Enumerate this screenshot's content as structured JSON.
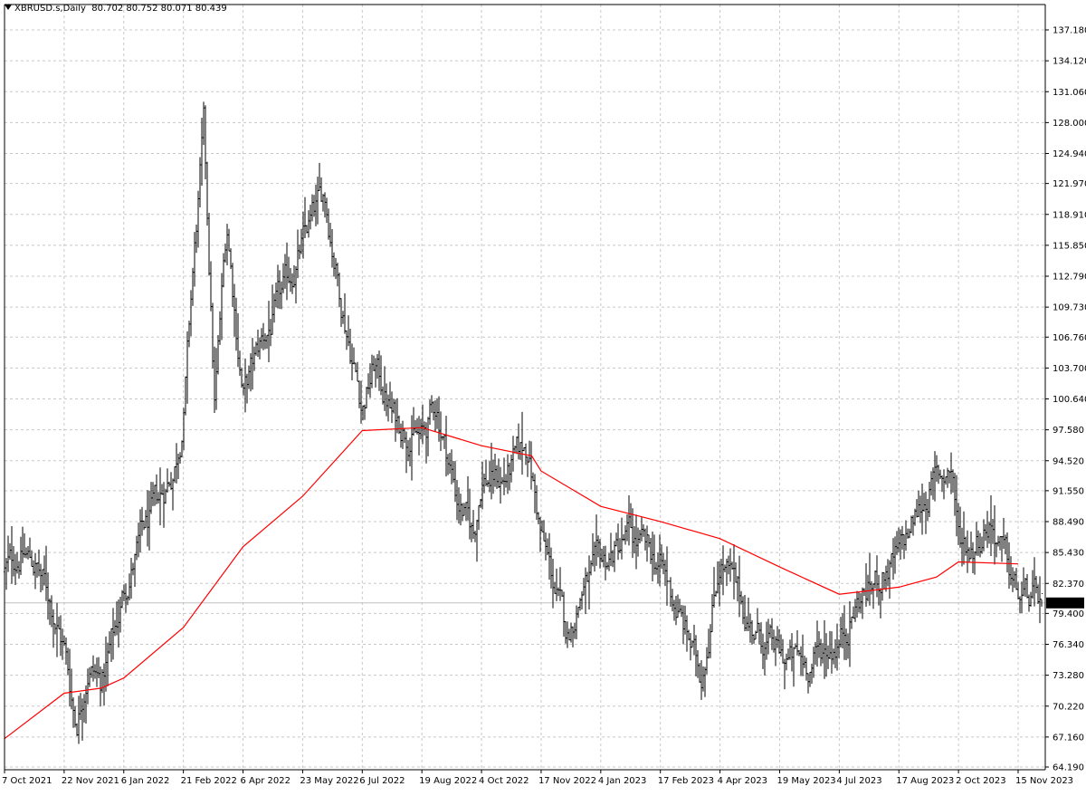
{
  "header": {
    "symbol_label": "XBRUSD.s,Daily",
    "ohlc_text": "80.702 80.752 80.071 80.439"
  },
  "colors": {
    "background": "#ffffff",
    "grid": "#c8c8c8",
    "bars": "#000000",
    "ma_line": "#ff0000",
    "price_line": "#c0c0c0",
    "price_label_bg": "#000000",
    "price_label_text": "#ffffff"
  },
  "chart_data": {
    "type": "bar",
    "subtype": "ohlc",
    "title": "",
    "ylim": [
      64.19,
      137.18
    ],
    "grid": true,
    "current_price": 80.439,
    "y_ticks": [
      "137.180",
      "134.120",
      "131.060",
      "128.000",
      "124.940",
      "121.970",
      "118.910",
      "115.850",
      "112.790",
      "109.730",
      "106.760",
      "103.700",
      "100.640",
      "97.580",
      "94.520",
      "91.550",
      "88.490",
      "85.430",
      "82.370",
      "79.400",
      "76.340",
      "73.280",
      "70.220",
      "67.160",
      "64.190"
    ],
    "x_ticks": [
      "7 Oct 2021",
      "22 Nov 2021",
      "6 Jan 2022",
      "21 Feb 2022",
      "6 Apr 2022",
      "23 May 2022",
      "6 Jul 2022",
      "19 Aug 2022",
      "4 Oct 2022",
      "17 Nov 2022",
      "4 Jan 2023",
      "17 Feb 2023",
      "4 Apr 2023",
      "19 May 2023",
      "4 Jul 2023",
      "17 Aug 2023",
      "2 Oct 2023",
      "15 Nov 2023"
    ],
    "price_path": [
      [
        "7 Oct 2021",
        83.5
      ],
      [
        "2021-10-20",
        85.5
      ],
      [
        "2021-11-01",
        84.0
      ],
      [
        "2021-11-12",
        80.5
      ],
      [
        "22 Nov 2021",
        76.0
      ],
      [
        "2021-12-01",
        68.5
      ],
      [
        "2021-12-10",
        74.5
      ],
      [
        "2021-12-20",
        72.5
      ],
      [
        "2021-12-30",
        77.5
      ],
      [
        "6 Jan 2022",
        81.5
      ],
      [
        "2022-01-20",
        87.0
      ],
      [
        "2022-02-01",
        90.0
      ],
      [
        "2022-02-14",
        94.0
      ],
      [
        "21 Feb 2022",
        99.0
      ],
      [
        "2022-02-28",
        113.0
      ],
      [
        "2022-03-08",
        127.0
      ],
      [
        "2022-03-16",
        100.0
      ],
      [
        "2022-03-25",
        118.0
      ],
      [
        "6 Apr 2022",
        101.0
      ],
      [
        "2022-04-20",
        106.0
      ],
      [
        "2022-05-05",
        110.0
      ],
      [
        "23 May 2022",
        116.0
      ],
      [
        "2022-06-08",
        121.0
      ],
      [
        "2022-06-20",
        111.0
      ],
      [
        "6 Jul 2022",
        100.0
      ],
      [
        "2022-07-15",
        104.0
      ],
      [
        "2022-07-28",
        99.0
      ],
      [
        "19 Aug 2022",
        96.5
      ],
      [
        "2022-08-30",
        100.0
      ],
      [
        "2022-09-15",
        91.0
      ],
      [
        "2022-09-28",
        87.0
      ],
      [
        "4 Oct 2022",
        93.0
      ],
      [
        "2022-10-20",
        92.5
      ],
      [
        "2022-11-07",
        96.0
      ],
      [
        "17 Nov 2022",
        87.0
      ],
      [
        "2022-12-08",
        77.0
      ],
      [
        "2022-12-20",
        82.0
      ],
      [
        "4 Jan 2023",
        84.0
      ],
      [
        "2023-01-25",
        87.0
      ],
      [
        "17 Feb 2023",
        84.0
      ],
      [
        "2023-03-13",
        76.0
      ],
      [
        "2023-03-20",
        73.0
      ],
      [
        "4 Apr 2023",
        85.0
      ],
      [
        "2023-04-28",
        78.0
      ],
      [
        "19 May 2023",
        75.0
      ],
      [
        "2023-06-10",
        74.5
      ],
      [
        "4 Jul 2023",
        77.0
      ],
      [
        "2023-07-20",
        81.0
      ],
      [
        "17 Aug 2023",
        85.0
      ],
      [
        "2023-09-10",
        92.0
      ],
      [
        "2023-09-27",
        94.0
      ],
      [
        "2 Oct 2023",
        87.0
      ],
      [
        "2023-10-12",
        86.0
      ],
      [
        "2023-10-25",
        89.0
      ],
      [
        "15 Nov 2023",
        81.0
      ],
      [
        "2023-11-28",
        80.44
      ]
    ],
    "moving_average": [
      [
        "7 Oct 2021",
        67.0
      ],
      [
        "22 Nov 2021",
        71.5
      ],
      [
        "2021-12-20",
        72.0
      ],
      [
        "6 Jan 2022",
        73.0
      ],
      [
        "21 Feb 2022",
        78.0
      ],
      [
        "6 Apr 2022",
        86.0
      ],
      [
        "23 May 2022",
        91.0
      ],
      [
        "6 Jul 2022",
        97.5
      ],
      [
        "19 Aug 2022",
        97.8
      ],
      [
        "4 Oct 2022",
        96.0
      ],
      [
        "2022-11-10",
        95.0
      ],
      [
        "17 Nov 2022",
        93.5
      ],
      [
        "4 Jan 2023",
        90.0
      ],
      [
        "17 Feb 2023",
        88.5
      ],
      [
        "4 Apr 2023",
        86.8
      ],
      [
        "19 May 2023",
        84.0
      ],
      [
        "4 Jul 2023",
        81.3
      ],
      [
        "17 Aug 2023",
        82.0
      ],
      [
        "2023-09-15",
        83.0
      ],
      [
        "2 Oct 2023",
        84.5
      ],
      [
        "15 Nov 2023",
        84.3
      ]
    ]
  }
}
